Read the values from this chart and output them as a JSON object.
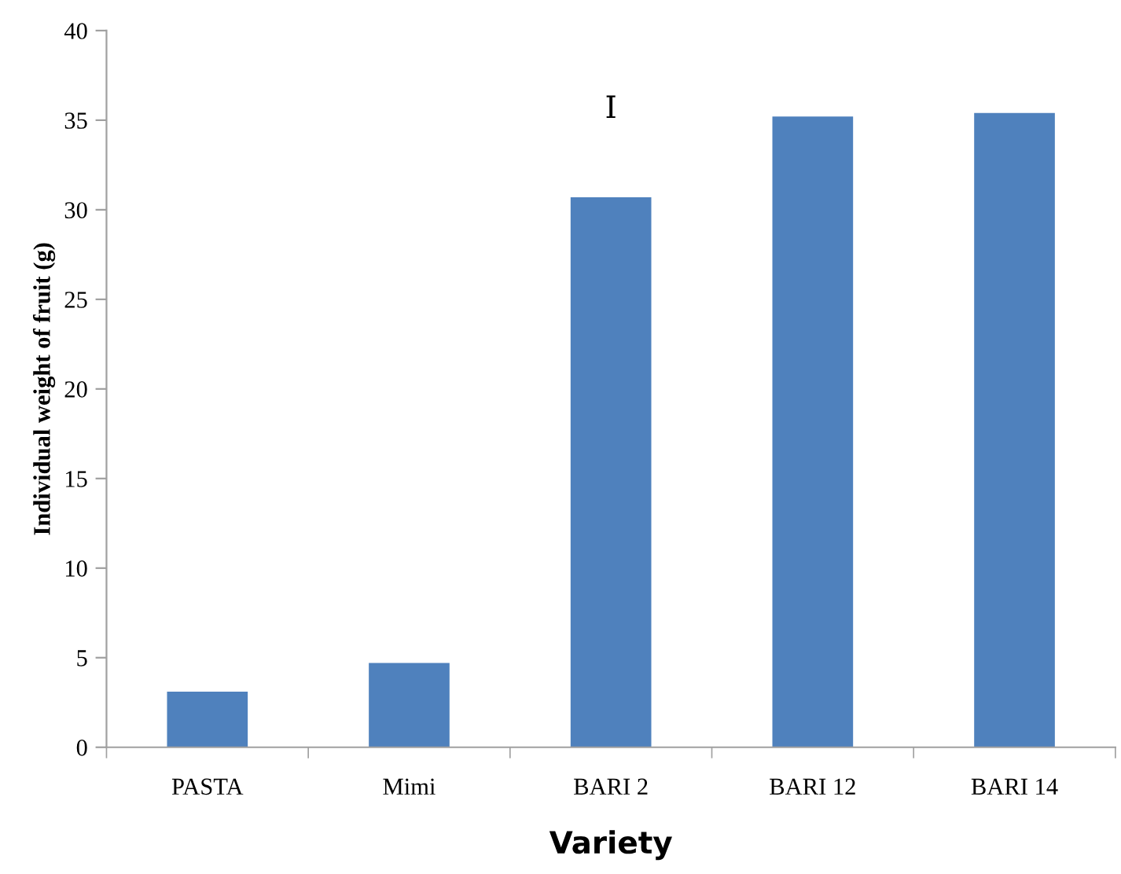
{
  "chart_data": {
    "type": "bar",
    "xlabel": "Variety",
    "ylabel": "Individual weight of fruit (g)",
    "categories": [
      "PASTA",
      "Mimi",
      "BARI 2",
      "BARI 12",
      "BARI 14"
    ],
    "values": [
      3.1,
      4.7,
      30.7,
      35.2,
      35.4
    ],
    "color": "#4f81bd",
    "ylim": [
      0,
      40
    ],
    "yticks": [
      0,
      5,
      10,
      15,
      20,
      25,
      30,
      35,
      40
    ],
    "annotations": [
      "I"
    ],
    "grid": false,
    "legend": false
  }
}
